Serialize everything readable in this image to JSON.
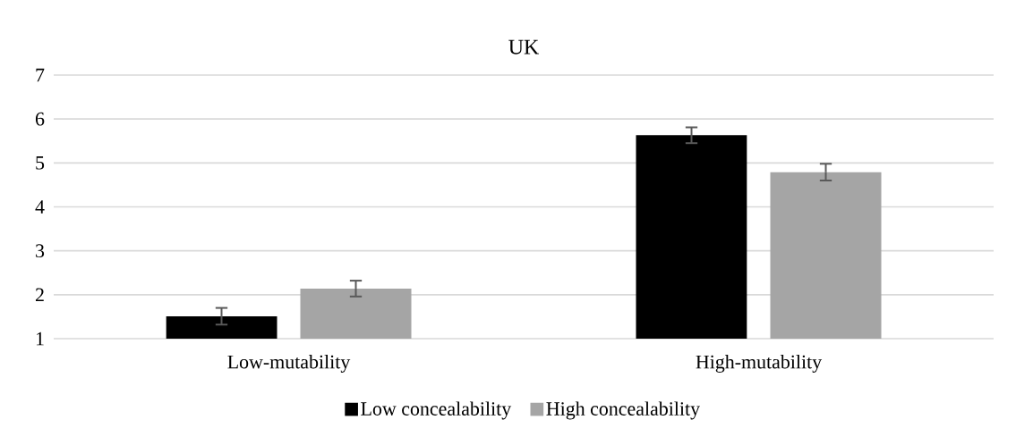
{
  "chart_data": {
    "type": "bar",
    "title": "UK",
    "categories": [
      "Low-mutability",
      "High-mutability"
    ],
    "series": [
      {
        "name": "Low concealability",
        "color": "#000000",
        "values": [
          1.51,
          5.63
        ],
        "errors": [
          0.19,
          0.18
        ]
      },
      {
        "name": "High concealability",
        "color": "#a5a5a5",
        "values": [
          2.14,
          4.79
        ],
        "errors": [
          0.18,
          0.19
        ]
      }
    ],
    "ylim": [
      1,
      7
    ],
    "yticks": [
      1,
      2,
      3,
      4,
      5,
      6,
      7
    ],
    "grid": "y",
    "legend": "bottom"
  }
}
